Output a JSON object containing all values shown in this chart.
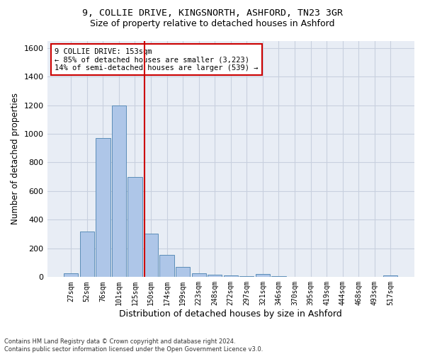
{
  "title1": "9, COLLIE DRIVE, KINGSNORTH, ASHFORD, TN23 3GR",
  "title2": "Size of property relative to detached houses in Ashford",
  "xlabel": "Distribution of detached houses by size in Ashford",
  "ylabel": "Number of detached properties",
  "categories": [
    "27sqm",
    "52sqm",
    "76sqm",
    "101sqm",
    "125sqm",
    "150sqm",
    "174sqm",
    "199sqm",
    "223sqm",
    "248sqm",
    "272sqm",
    "297sqm",
    "321sqm",
    "346sqm",
    "370sqm",
    "395sqm",
    "419sqm",
    "444sqm",
    "468sqm",
    "493sqm",
    "517sqm"
  ],
  "values": [
    28,
    320,
    970,
    1200,
    700,
    305,
    155,
    70,
    28,
    15,
    10,
    5,
    20,
    5,
    0,
    0,
    0,
    0,
    0,
    0,
    10
  ],
  "bar_color": "#aec6e8",
  "bar_edge_color": "#5b8db8",
  "vline_color": "#cc0000",
  "annotation_line1": "9 COLLIE DRIVE: 153sqm",
  "annotation_line2": "← 85% of detached houses are smaller (3,223)",
  "annotation_line3": "14% of semi-detached houses are larger (539) →",
  "annotation_box_color": "#ffffff",
  "annotation_box_edge": "#cc0000",
  "ylim": [
    0,
    1650
  ],
  "yticks": [
    0,
    200,
    400,
    600,
    800,
    1000,
    1200,
    1400,
    1600
  ],
  "grid_color": "#c8d0df",
  "bg_color": "#e8edf5",
  "title1_fontsize": 9.5,
  "title2_fontsize": 9,
  "xlabel_fontsize": 9,
  "ylabel_fontsize": 8.5,
  "footnote": "Contains HM Land Registry data © Crown copyright and database right 2024.\nContains public sector information licensed under the Open Government Licence v3.0."
}
